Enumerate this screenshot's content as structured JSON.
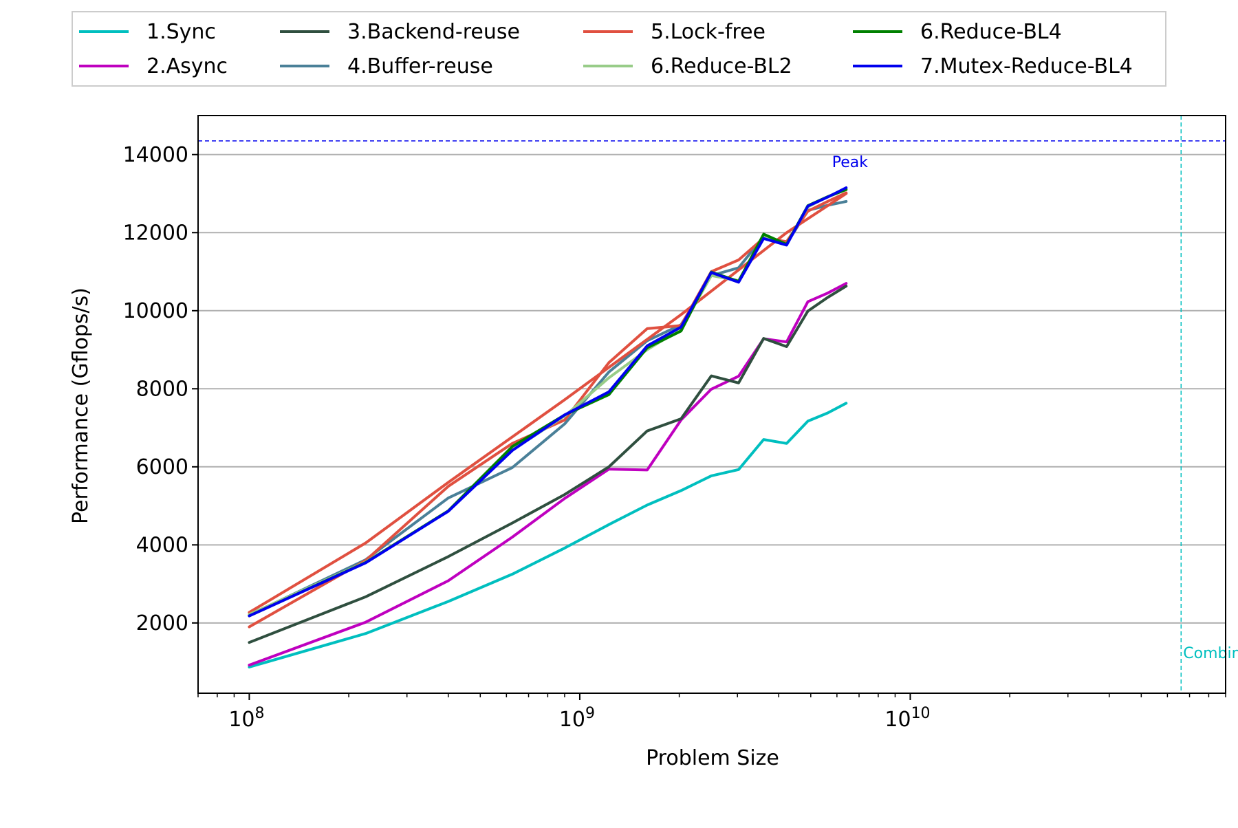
{
  "chart_data": {
    "type": "line",
    "xlabel": "Problem Size",
    "ylabel": "Performance (Gflops/s)",
    "xscale": "log",
    "xlim": [
      70000000,
      90000000000
    ],
    "ylim": [
      200,
      15000
    ],
    "grid": "y-major",
    "legend_position": "top",
    "y_ticks": [
      2000,
      4000,
      6000,
      8000,
      10000,
      12000,
      14000
    ],
    "y_tick_labels": [
      "2000",
      "4000",
      "6000",
      "8000",
      "10000",
      "12000",
      "14000"
    ],
    "x_ticks": [
      100000000,
      1000000000,
      10000000000
    ],
    "x_tick_labels": [
      {
        "base": "10",
        "exp": "8"
      },
      {
        "base": "10",
        "exp": "9"
      },
      {
        "base": "10",
        "exp": "10"
      }
    ],
    "reference_lines": [
      {
        "orientation": "horizontal",
        "value": 14350,
        "label": "Peak",
        "color": "#0000ee",
        "label_anchor_x": 5800000000
      },
      {
        "orientation": "vertical",
        "value": 66000000000,
        "label": "Combined",
        "color": "#00bfbf",
        "label_anchor_y": 1100
      }
    ],
    "series": [
      {
        "name": "1.Sync",
        "color": "#00bfbf",
        "x": [
          100000000,
          225000000,
          400000000,
          625000000,
          900000000,
          1225000000,
          1600000000,
          2025000000,
          2500000000,
          3025000000,
          3600000000,
          4225000000,
          4900000000,
          5625000000,
          6400000000
        ],
        "y": [
          870,
          1730,
          2550,
          3250,
          3920,
          4520,
          5020,
          5390,
          5770,
          5930,
          6700,
          6600,
          7170,
          7380,
          7630
        ]
      },
      {
        "name": "2.Async",
        "color": "#bf00bf",
        "x": [
          100000000,
          225000000,
          400000000,
          625000000,
          900000000,
          1225000000,
          1600000000,
          2025000000,
          2500000000,
          3025000000,
          3600000000,
          4225000000,
          4900000000,
          5625000000,
          6400000000
        ],
        "y": [
          920,
          2020,
          3080,
          4200,
          5190,
          5940,
          5920,
          7200,
          7990,
          8320,
          9280,
          9200,
          10230,
          10450,
          10700
        ]
      },
      {
        "name": "3.Backend-reuse",
        "color": "#2f4f3f",
        "x": [
          100000000,
          225000000,
          400000000,
          625000000,
          900000000,
          1225000000,
          1600000000,
          2025000000,
          2500000000,
          3025000000,
          3600000000,
          4225000000,
          4900000000,
          5625000000,
          6400000000
        ],
        "y": [
          1500,
          2670,
          3700,
          4560,
          5290,
          6000,
          6920,
          7230,
          8330,
          8150,
          9290,
          9080,
          9990,
          10340,
          10630
        ]
      },
      {
        "name": "4.Buffer-reuse",
        "color": "#4a8098",
        "x": [
          100000000,
          225000000,
          400000000,
          625000000,
          900000000,
          1225000000,
          1600000000,
          2025000000,
          2500000000,
          3025000000,
          3600000000,
          4225000000,
          4900000000,
          5625000000,
          6400000000
        ],
        "y": [
          2200,
          3620,
          5200,
          5980,
          7100,
          8430,
          9230,
          9640,
          10900,
          11100,
          11900,
          11720,
          12570,
          12700,
          12800
        ]
      },
      {
        "name": "5.Lock-free",
        "color": "#e05040",
        "x": [
          100000000,
          225000000,
          400000000,
          625000000,
          900000000,
          1225000000,
          1600000000,
          2025000000,
          2500000000,
          3025000000,
          3600000000,
          4225000000,
          4900000000,
          5625000000,
          6400000000
        ],
        "y": [
          1900,
          3600,
          5500,
          6600,
          7200,
          8670,
          9540,
          9620,
          11000,
          11300,
          11860,
          11770,
          12550,
          12800,
          13020
        ]
      },
      {
        "name": "5.Lock-free",
        "color": "#e05040",
        "legend": false,
        "x": [
          100000000,
          225000000,
          400000000,
          900000000,
          2025000000,
          4225000000,
          6400000000
        ],
        "y": [
          2270,
          4050,
          5600,
          7720,
          9900,
          12000,
          13000
        ]
      },
      {
        "name": "6.Reduce-BL2",
        "color": "#98cc88",
        "x": [
          100000000,
          225000000,
          400000000,
          625000000,
          900000000,
          1225000000,
          1600000000,
          2025000000,
          2500000000,
          3025000000,
          3600000000,
          4225000000,
          4900000000,
          5625000000,
          6400000000
        ],
        "y": [
          2220,
          3560,
          4870,
          6430,
          7300,
          8280,
          9000,
          9530,
          10900,
          10770,
          11900,
          11700,
          12660,
          12920,
          13130
        ]
      },
      {
        "name": "6.Reduce-BL4",
        "color": "#008000",
        "x": [
          100000000,
          225000000,
          400000000,
          625000000,
          900000000,
          1225000000,
          1600000000,
          2025000000,
          2500000000,
          3025000000,
          3600000000,
          4225000000,
          4900000000,
          5625000000,
          6400000000
        ],
        "y": [
          2180,
          3550,
          4870,
          6520,
          7330,
          7850,
          9050,
          9480,
          10990,
          10750,
          11960,
          11700,
          12690,
          12920,
          13100
        ]
      },
      {
        "name": "7.Mutex-Reduce-BL4",
        "color": "#0000ee",
        "x": [
          100000000,
          225000000,
          400000000,
          625000000,
          900000000,
          1225000000,
          1600000000,
          2025000000,
          2500000000,
          3025000000,
          3600000000,
          4225000000,
          4900000000,
          5625000000,
          6400000000
        ],
        "y": [
          2180,
          3540,
          4860,
          6420,
          7330,
          7920,
          9100,
          9580,
          10980,
          10730,
          11850,
          11680,
          12680,
          12910,
          13150
        ]
      }
    ]
  }
}
